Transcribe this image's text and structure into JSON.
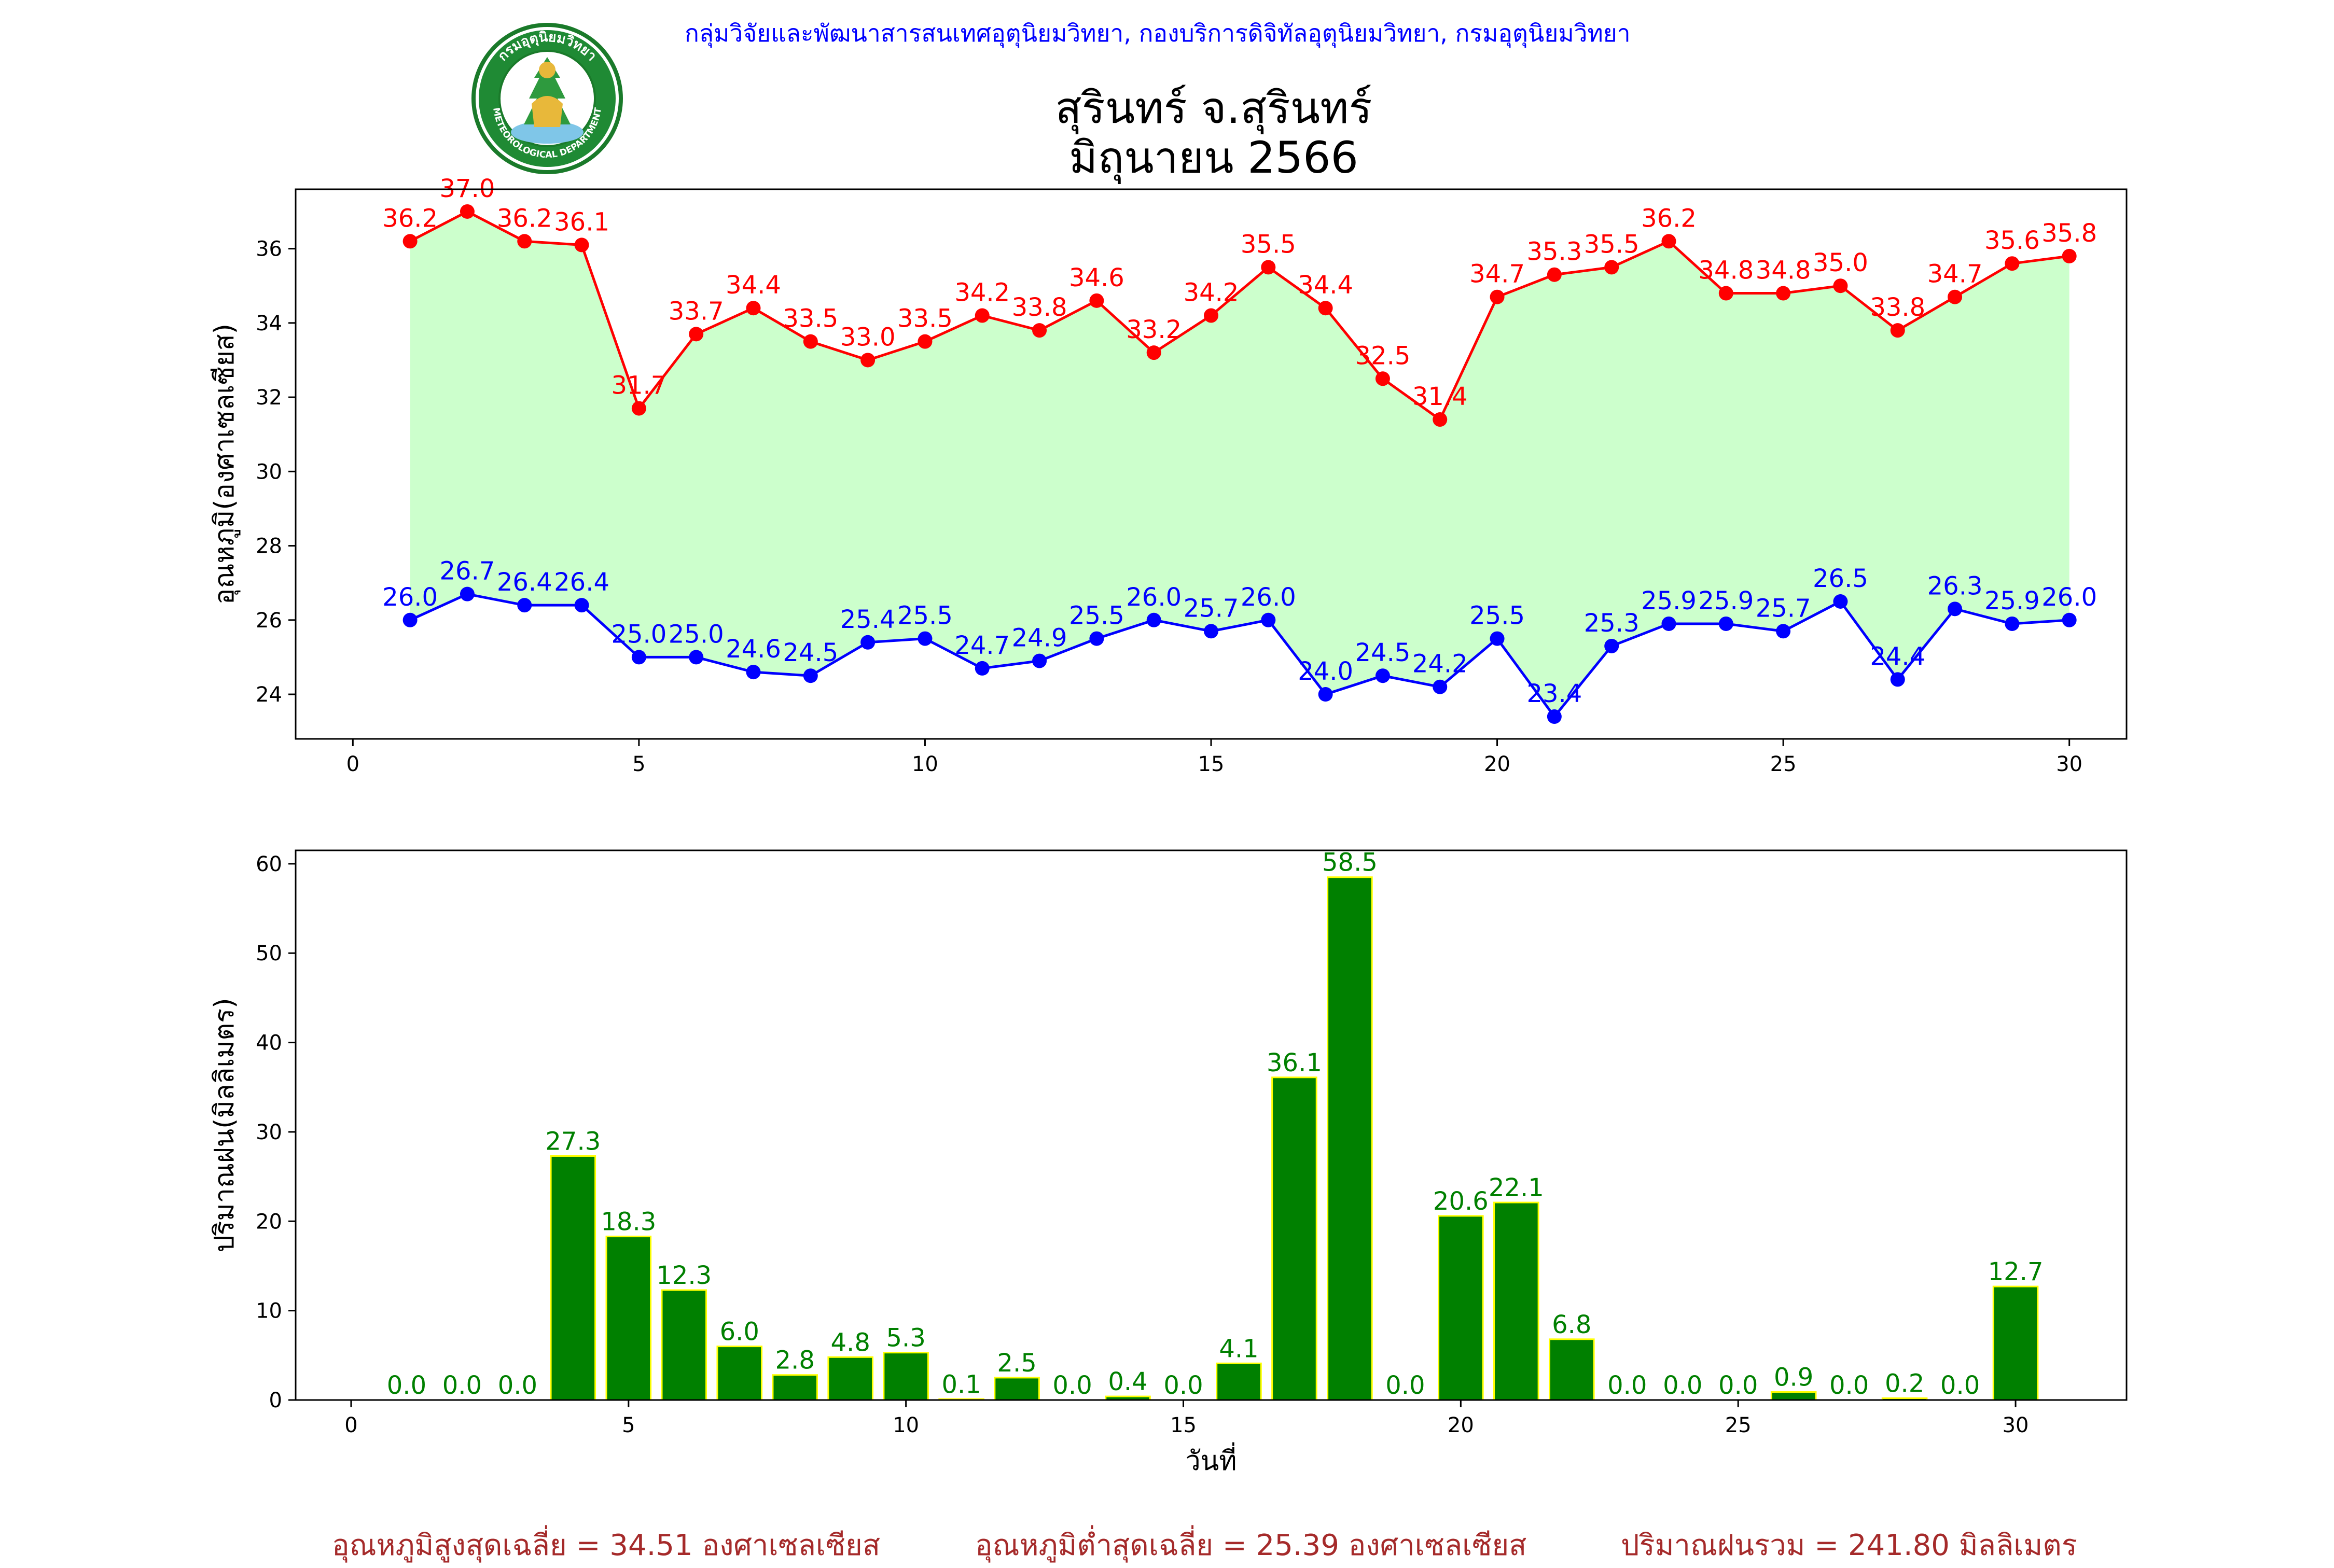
{
  "header": {
    "credit": "กลุ่มวิจัยและพัฒนาสารสนเทศอุตุนิยมวิทยา, กองบริการดิจิทัลอุตุนิยมวิทยา, กรมอุตุนิยมวิทยา",
    "logo_text_top": "กรมอุตุนิยมวิทยา",
    "logo_text_bottom": "METEOROLOGICAL DEPARTMENT"
  },
  "title": {
    "line1": "สุรินทร์ จ.สุรินทร์",
    "line2": "มิถุนายน 2566"
  },
  "colors": {
    "max": "#ff0000",
    "min": "#0000ff",
    "fill": "#ccffcc",
    "bar": "#008000",
    "bar_edge": "#ffff00",
    "summary": "#a52a2a"
  },
  "chart_data": [
    {
      "type": "line",
      "title": "",
      "xlabel": "",
      "ylabel": "อุณหภูมิ(องศาเซลเซียส)",
      "xlim": [
        -1,
        31
      ],
      "ylim": [
        22.8,
        37.6
      ],
      "xticks": [
        0,
        5,
        10,
        15,
        20,
        25,
        30
      ],
      "yticks": [
        24,
        26,
        28,
        30,
        32,
        34,
        36
      ],
      "x": [
        1,
        2,
        3,
        4,
        5,
        6,
        7,
        8,
        9,
        10,
        11,
        12,
        13,
        14,
        15,
        16,
        17,
        18,
        19,
        20,
        21,
        22,
        23,
        24,
        25,
        26,
        27,
        28,
        29,
        30
      ],
      "series": [
        {
          "values": [
            36.2,
            37.0,
            36.2,
            36.1,
            31.7,
            33.7,
            34.4,
            33.5,
            33.0,
            33.5,
            34.2,
            33.8,
            34.6,
            33.2,
            34.2,
            35.5,
            34.4,
            32.5,
            31.4,
            34.7,
            35.3,
            35.5,
            36.2,
            34.8,
            34.8,
            35.0,
            33.8,
            34.7,
            35.6,
            35.8
          ]
        },
        {
          "values": [
            26.0,
            26.7,
            26.4,
            26.4,
            25.0,
            25.0,
            24.6,
            24.5,
            25.4,
            25.5,
            24.7,
            24.9,
            25.5,
            26.0,
            25.7,
            26.0,
            24.0,
            24.5,
            24.2,
            25.5,
            23.4,
            25.3,
            25.9,
            25.9,
            25.7,
            26.5,
            24.4,
            26.3,
            25.9,
            26.0
          ]
        }
      ]
    },
    {
      "type": "bar",
      "title": "",
      "xlabel": "วันที่",
      "ylabel": "ปริมาณฝน(มิลลิเมตร)",
      "xlim": [
        -1,
        32
      ],
      "ylim": [
        0,
        61.5
      ],
      "xticks": [
        0,
        5,
        10,
        15,
        20,
        25,
        30
      ],
      "yticks": [
        0,
        10,
        20,
        30,
        40,
        50,
        60
      ],
      "categories": [
        1,
        2,
        3,
        4,
        5,
        6,
        7,
        8,
        9,
        10,
        11,
        12,
        13,
        14,
        15,
        16,
        17,
        18,
        19,
        20,
        21,
        22,
        23,
        24,
        25,
        26,
        27,
        28,
        29,
        30
      ],
      "values": [
        0.0,
        0.0,
        0.0,
        27.3,
        18.3,
        12.3,
        6.0,
        2.8,
        4.8,
        5.3,
        0.1,
        2.5,
        0.0,
        0.4,
        0.0,
        4.1,
        36.1,
        58.5,
        0.0,
        20.6,
        22.1,
        6.8,
        0.0,
        0.0,
        0.0,
        0.9,
        0.0,
        0.2,
        0.0,
        12.7
      ]
    }
  ],
  "summary": {
    "avg_max": "อุณหภูมิสูงสุดเฉลี่ย = 34.51 องศาเซลเซียส",
    "avg_min": "อุณหภูมิต่ำสุดเฉลี่ย = 25.39 องศาเซลเซียส",
    "total_rain": "ปริมาณฝนรวม = 241.80 มิลลิเมตร"
  }
}
